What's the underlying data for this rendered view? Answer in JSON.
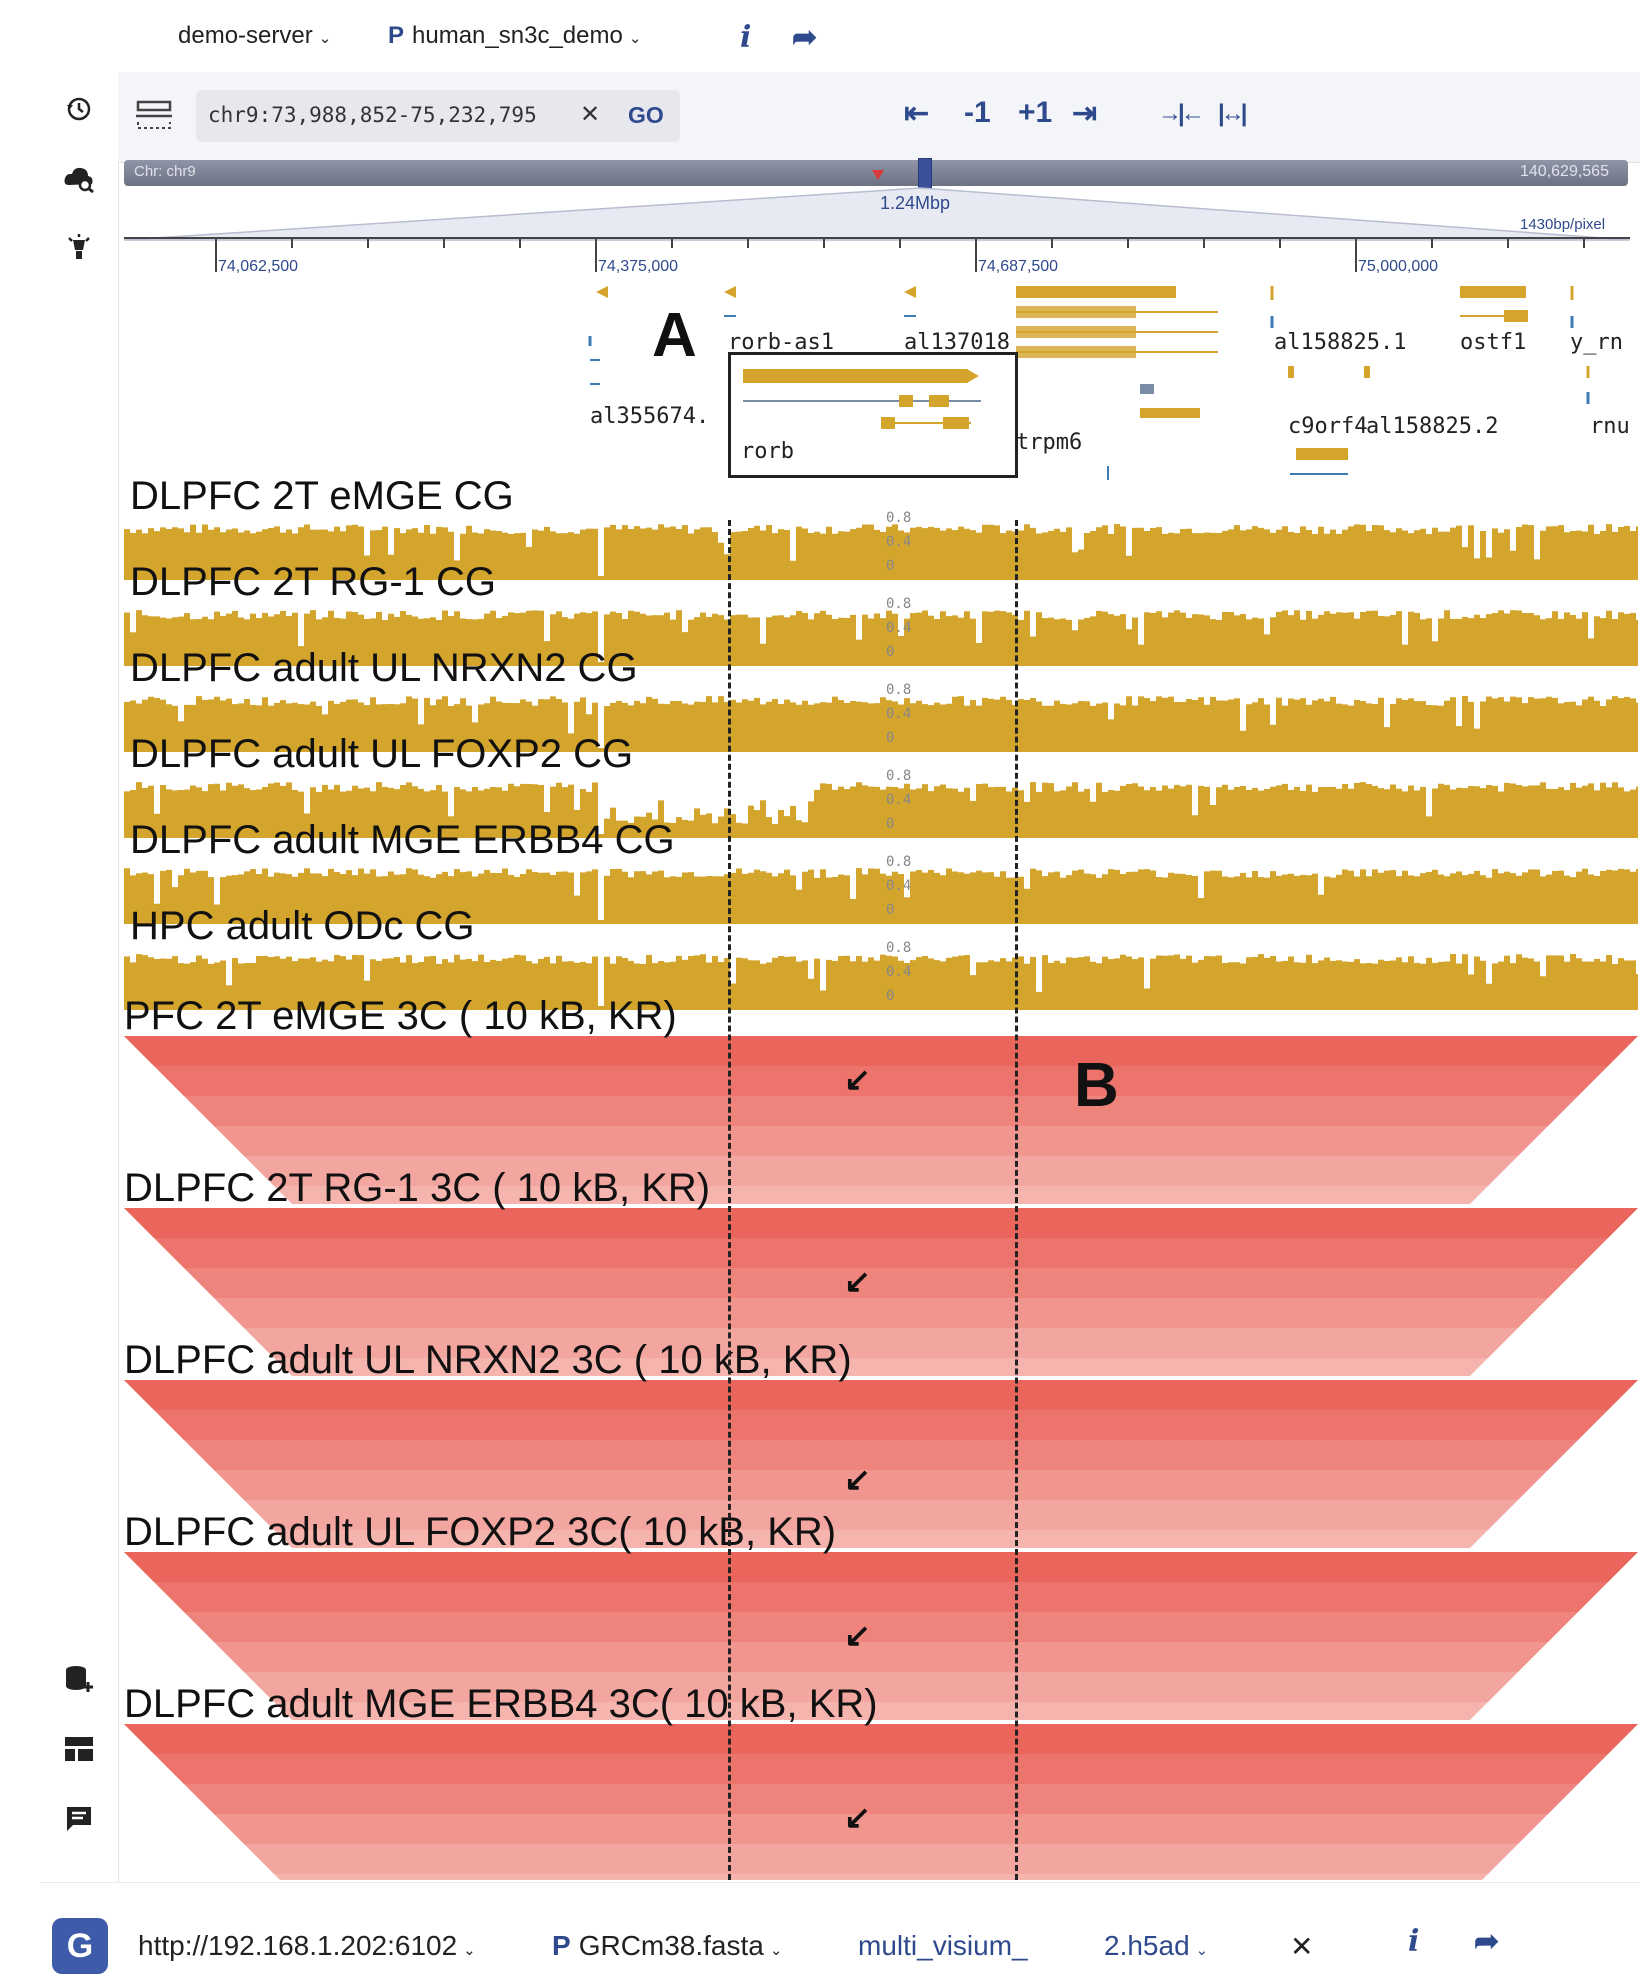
{
  "top_bar": {
    "server": "demo-server",
    "project_prefix": "P",
    "project": "human_sn3c_demo"
  },
  "locus": {
    "value": "chr9:73,988,852-75,232,795",
    "clear": "✕",
    "go": "GO"
  },
  "nav": {
    "jump_start": "⇤",
    "minus_one": "-1",
    "plus_one": "+1",
    "jump_end": "⇥",
    "zoom_in": "→|←",
    "zoom_out": "|↔|"
  },
  "chromosome": {
    "label": "Chr: chr9",
    "end": "140,629,565",
    "span": "1.24Mbp",
    "resolution": "1430bp/pixel",
    "ticks": [
      "74,062,500",
      "74,375,000",
      "74,687,500",
      "75,000,000"
    ]
  },
  "genes": {
    "labels": [
      "rorb-as1",
      "al137018",
      "al158825.1",
      "ostf1",
      "y_rn",
      "al355674.",
      "rorb",
      "trpm6",
      "c9orf4",
      "al158825.2",
      "rnu"
    ],
    "colors": {
      "gene": "#d4a52d",
      "intron": "#7a8ca8",
      "small": "#3d7bb6"
    }
  },
  "annotations": {
    "a": "A",
    "b": "B"
  },
  "methyl_tracks": [
    {
      "label": "DLPFC 2T eMGE CG",
      "scale": [
        "0.8",
        "0.4",
        "0"
      ]
    },
    {
      "label": "DLPFC 2T RG-1 CG",
      "scale": [
        "0.8",
        "0.4",
        "0"
      ]
    },
    {
      "label": "DLPFC adult UL NRXN2 CG",
      "scale": [
        "0.8",
        "0.4",
        "0"
      ]
    },
    {
      "label": "DLPFC adult UL FOXP2 CG",
      "scale": [
        "0.8",
        "0.4",
        "0"
      ]
    },
    {
      "label": "DLPFC adult MGE ERBB4 CG",
      "scale": [
        "0.8",
        "0.4",
        "0"
      ]
    },
    {
      "label": "HPC adult ODc CG",
      "scale": [
        "0.8",
        "0.4",
        "0"
      ]
    }
  ],
  "hic_tracks": [
    {
      "label": "PFC 2T eMGE 3C ( 10 kB, KR)"
    },
    {
      "label": "DLPFC 2T RG-1 3C ( 10 kB, KR)"
    },
    {
      "label": "DLPFC adult UL NRXN2 3C ( 10 kB, KR)"
    },
    {
      "label": "DLPFC adult UL FOXP2 3C( 10 kB, KR)"
    },
    {
      "label": "DLPFC adult MGE ERBB4 3C( 10 kB, KR)"
    }
  ],
  "bottom_bar": {
    "url": "http://192.168.1.202:6102",
    "genome_prefix": "P",
    "genome": "GRCm38.fasta",
    "dataset_a": "multi_visium_",
    "dataset_b": "2.h5ad",
    "clear": "✕"
  },
  "colors": {
    "accent": "#2f4a8c",
    "methylation": "#d4a52d",
    "hic": "#e8453c"
  }
}
